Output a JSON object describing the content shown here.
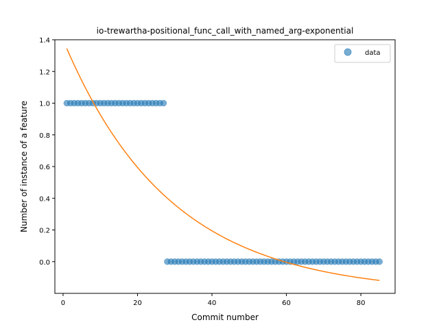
{
  "chart_data": {
    "type": "scatter",
    "title": "io-trewartha-positional_func_call_with_named_arg-exponential",
    "xlabel": "Commit number",
    "ylabel": "Number of instance of a feature",
    "xlim": [
      -2.2,
      89.2
    ],
    "ylim": [
      -0.2,
      1.4
    ],
    "xticks": [
      0,
      20,
      40,
      60,
      80
    ],
    "yticks": [
      0.0,
      0.2,
      0.4,
      0.6,
      0.8,
      1.0,
      1.2,
      1.4
    ],
    "xtick_labels": [
      "0",
      "20",
      "40",
      "60",
      "80"
    ],
    "ytick_labels": [
      "0.0",
      "0.2",
      "0.4",
      "0.6",
      "0.8",
      "1.0",
      "1.2",
      "1.4"
    ],
    "grid": false,
    "legend": {
      "position": "top-right",
      "entries": [
        "data"
      ]
    },
    "colors": {
      "data": "#1f77b4",
      "fit": "#ff7f0e"
    },
    "series": [
      {
        "name": "data",
        "kind": "scatter",
        "segments": [
          {
            "x_start": 1,
            "x_end": 27,
            "y": 1.0
          },
          {
            "x_start": 28,
            "x_end": 85,
            "y": 0.0
          }
        ]
      },
      {
        "kind": "line",
        "fit": {
          "a": 1.6,
          "b": 0.035,
          "c": -0.2,
          "x_start": 1,
          "x_end": 85
        }
      }
    ]
  }
}
